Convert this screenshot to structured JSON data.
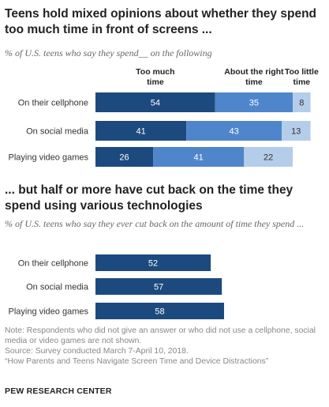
{
  "chart1": {
    "title": "Teens hold mixed opinions about whether they spend too much time in front of screens ...",
    "subtitle": "% of U.S. teens who say they spend__ on the following"
  },
  "chart2": {
    "title": "... but half or more have cut back on the time they spend using various technologies",
    "subtitle": "% of U.S. teens who say they ever cut back on the amount of time they spend ..."
  },
  "notes": {
    "note": "Note: Respondents who did not give an answer or who did not use a cellphone, social media or video games are not shown.",
    "source": "Source: Survey conducted March 7-April 10, 2018.",
    "report": "“How Parents and Teens Navigate Screen Time and Device Distractions”",
    "brand": "PEW RESEARCH CENTER"
  },
  "colors": {
    "too_much": "#1d4a7e",
    "about_right": "#4f86cb",
    "too_little": "#b4cdea",
    "cut_back": "#1d4a7e"
  },
  "chart_data": [
    {
      "type": "bar",
      "orientation": "horizontal",
      "stacked": true,
      "categories": [
        "On their cellphone",
        "On social media",
        "Playing video games"
      ],
      "series": [
        {
          "name": "Too much time",
          "values": [
            54,
            41,
            26
          ]
        },
        {
          "name": "About the right time",
          "values": [
            35,
            43,
            41
          ]
        },
        {
          "name": "Too little time",
          "values": [
            8,
            13,
            22
          ]
        }
      ],
      "legend": "top"
    },
    {
      "type": "bar",
      "orientation": "horizontal",
      "categories": [
        "On their cellphone",
        "On social media",
        "Playing video games"
      ],
      "values": [
        52,
        57,
        58
      ]
    }
  ]
}
